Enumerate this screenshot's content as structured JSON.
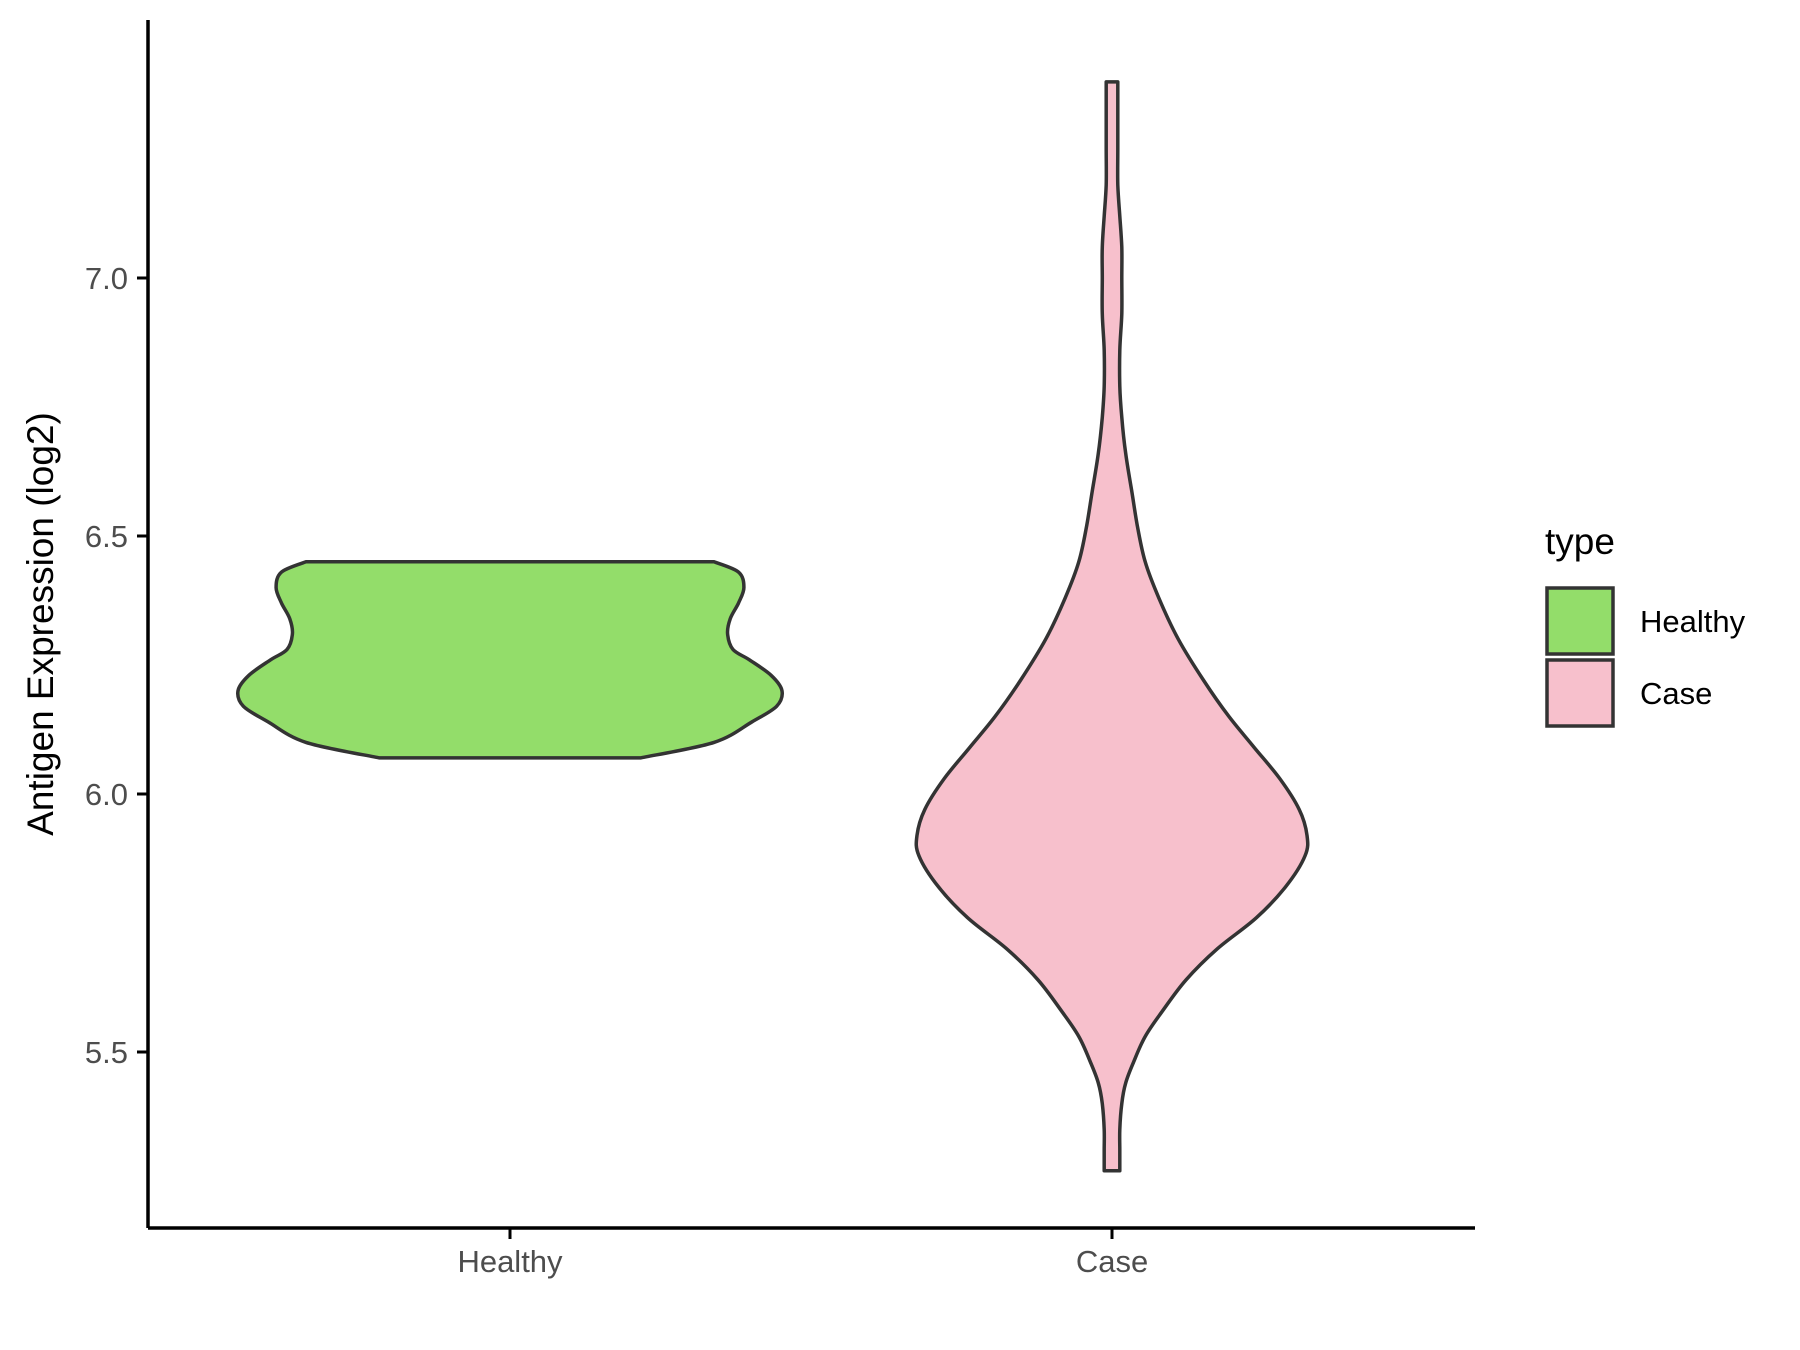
{
  "chart_data": {
    "type": "violin",
    "ylabel": "Antigen Expression (log2)",
    "xlabel": "",
    "categories": [
      "Healthy",
      "Case"
    ],
    "y_ticks": [
      5.5,
      6.0,
      6.5,
      7.0
    ],
    "y_tick_labels": [
      "5.5",
      "6.0",
      "6.5",
      "7.0"
    ],
    "ylim": [
      5.17,
      7.55
    ],
    "grid": false,
    "legend": {
      "title": "type",
      "placement": "right",
      "entries": [
        {
          "label": "Healthy",
          "color": "#93DD6A"
        },
        {
          "label": "Case",
          "color": "#F7C0CC"
        }
      ]
    },
    "series": [
      {
        "name": "Healthy",
        "color": "#93DD6A",
        "min": 6.07,
        "max": 6.45,
        "density_profile": [
          [
            6.07,
            0.48
          ],
          [
            6.1,
            0.75
          ],
          [
            6.14,
            0.89
          ],
          [
            6.17,
            0.98
          ],
          [
            6.2,
            1.0
          ],
          [
            6.23,
            0.96
          ],
          [
            6.26,
            0.88
          ],
          [
            6.28,
            0.82
          ],
          [
            6.31,
            0.8
          ],
          [
            6.34,
            0.81
          ],
          [
            6.37,
            0.84
          ],
          [
            6.4,
            0.86
          ],
          [
            6.43,
            0.84
          ],
          [
            6.45,
            0.75
          ]
        ]
      },
      {
        "name": "Case",
        "color": "#F7C0CC",
        "min": 5.27,
        "max": 7.38,
        "density_profile": [
          [
            5.27,
            0.04
          ],
          [
            5.31,
            0.04
          ],
          [
            5.35,
            0.04
          ],
          [
            5.4,
            0.05
          ],
          [
            5.44,
            0.07
          ],
          [
            5.48,
            0.11
          ],
          [
            5.53,
            0.17
          ],
          [
            5.58,
            0.26
          ],
          [
            5.64,
            0.38
          ],
          [
            5.7,
            0.54
          ],
          [
            5.76,
            0.74
          ],
          [
            5.82,
            0.89
          ],
          [
            5.88,
            0.99
          ],
          [
            5.92,
            1.0
          ],
          [
            5.97,
            0.96
          ],
          [
            6.03,
            0.86
          ],
          [
            6.09,
            0.73
          ],
          [
            6.15,
            0.6
          ],
          [
            6.22,
            0.47
          ],
          [
            6.3,
            0.34
          ],
          [
            6.38,
            0.24
          ],
          [
            6.45,
            0.17
          ],
          [
            6.52,
            0.13
          ],
          [
            6.59,
            0.1
          ],
          [
            6.66,
            0.07
          ],
          [
            6.73,
            0.05
          ],
          [
            6.79,
            0.04
          ],
          [
            6.86,
            0.04
          ],
          [
            6.93,
            0.05
          ],
          [
            7.0,
            0.05
          ],
          [
            7.06,
            0.05
          ],
          [
            7.12,
            0.04
          ],
          [
            7.18,
            0.03
          ],
          [
            7.25,
            0.03
          ],
          [
            7.32,
            0.03
          ],
          [
            7.38,
            0.03
          ]
        ]
      }
    ]
  }
}
